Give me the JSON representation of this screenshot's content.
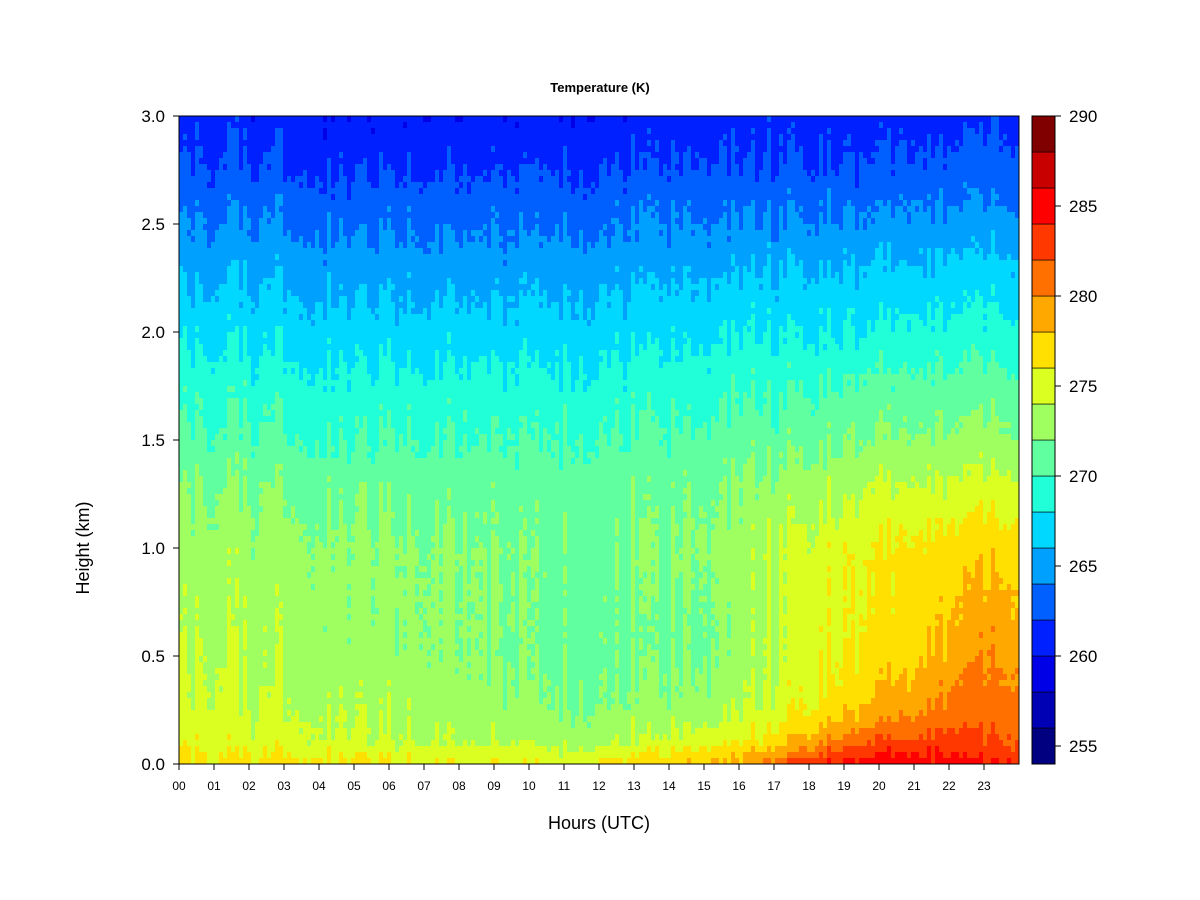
{
  "chart_data": {
    "type": "heatmap",
    "title": "Temperature (K)",
    "xlabel": "Hours (UTC)",
    "ylabel": "Height (km)",
    "x_ticks": [
      "00",
      "01",
      "02",
      "03",
      "04",
      "05",
      "06",
      "07",
      "08",
      "09",
      "10",
      "11",
      "12",
      "13",
      "14",
      "15",
      "16",
      "17",
      "18",
      "19",
      "20",
      "21",
      "22",
      "23"
    ],
    "y_ticks": [
      "0.0",
      "0.5",
      "1.0",
      "1.5",
      "2.0",
      "2.5",
      "3.0"
    ],
    "xlim": [
      0,
      24
    ],
    "ylim": [
      0,
      3.0
    ],
    "colorbar": {
      "label_ticks": [
        "255",
        "260",
        "265",
        "270",
        "275",
        "280",
        "285",
        "290"
      ],
      "range": [
        254,
        290
      ],
      "step": 2,
      "colors": [
        "#000080",
        "#0000b4",
        "#0000e6",
        "#0020ff",
        "#0060ff",
        "#00a0ff",
        "#00d8ff",
        "#20ffd8",
        "#60ffa0",
        "#a0ff60",
        "#dcff22",
        "#ffe000",
        "#ffa800",
        "#ff7000",
        "#ff3800",
        "#ff0000",
        "#c80000",
        "#800000"
      ]
    },
    "reference_hours": [
      0,
      1,
      2,
      3,
      5,
      7,
      9,
      11,
      13,
      15,
      16,
      17,
      18,
      19,
      20,
      21,
      22,
      23,
      24
    ],
    "reference_profiles": {
      "heights_km": [
        0.0,
        0.05,
        0.1,
        0.2,
        0.3,
        0.5,
        0.7,
        1.0,
        1.3,
        1.5,
        1.7,
        2.0,
        2.3,
        2.6,
        2.8,
        3.0
      ],
      "temperatures_K": [
        [
          276.5,
          276.0,
          275.5,
          275,
          274.5,
          274,
          273.5,
          273,
          272,
          270.5,
          269.5,
          267.5,
          265.5,
          263.5,
          262,
          261
        ],
        [
          276.5,
          276.0,
          275.5,
          275,
          274.5,
          274,
          273.5,
          273,
          272,
          270.5,
          269.5,
          267.5,
          265.5,
          263.5,
          262,
          261
        ],
        [
          277,
          276,
          275,
          274.5,
          274,
          273.5,
          273.3,
          273,
          272,
          270.5,
          269.5,
          267.5,
          265.5,
          263.5,
          262,
          261
        ],
        [
          277,
          276,
          275,
          274.5,
          274,
          273.5,
          273.2,
          272.8,
          271.8,
          270.3,
          269.3,
          267.3,
          265.3,
          263.3,
          261.8,
          260.8
        ],
        [
          276.5,
          275.5,
          274.5,
          274,
          273.5,
          273,
          272.8,
          272.5,
          271.5,
          270,
          269,
          267,
          265,
          263,
          261.5,
          260.5
        ],
        [
          276,
          275,
          274,
          273.5,
          273,
          272.5,
          272.5,
          272.3,
          271.3,
          270,
          269,
          267,
          265,
          263,
          261.5,
          260.5
        ],
        [
          276,
          275,
          274,
          273,
          272.5,
          272,
          272,
          272,
          271.2,
          270,
          269,
          267,
          265,
          263,
          261.5,
          260.5
        ],
        [
          275.5,
          274.5,
          273.5,
          272.5,
          272,
          271.5,
          271.5,
          271.5,
          271,
          270,
          269,
          267,
          265,
          263,
          261.5,
          260.5
        ],
        [
          277,
          275.5,
          274,
          273,
          272,
          271.5,
          271.5,
          271.8,
          271.2,
          270.2,
          269.2,
          267.2,
          265.2,
          263.2,
          261.7,
          260.7
        ],
        [
          278,
          276.5,
          275,
          273.5,
          272.5,
          271.8,
          271.8,
          272.3,
          271.6,
          270.5,
          269.5,
          267.5,
          265.5,
          263.5,
          262,
          261
        ],
        [
          279,
          277.5,
          276,
          274.5,
          273.5,
          273,
          273,
          273,
          272.2,
          271,
          270,
          268,
          265.8,
          263.5,
          262,
          261
        ],
        [
          281,
          279,
          277,
          275.5,
          274.5,
          274,
          274,
          274,
          272.5,
          271.2,
          270,
          268,
          265.8,
          263.5,
          262,
          261
        ],
        [
          283.5,
          281.5,
          279,
          277,
          276,
          275.5,
          275,
          274.8,
          273,
          271.5,
          270.2,
          268,
          266,
          263.5,
          262,
          261
        ],
        [
          284.5,
          283,
          281,
          278.5,
          277,
          276,
          275.5,
          275.5,
          273.3,
          271.8,
          270.5,
          268,
          266,
          263.5,
          262,
          261
        ],
        [
          285,
          284,
          282,
          279.5,
          278,
          276.8,
          276.2,
          276,
          273.8,
          272,
          270.8,
          268.2,
          266,
          263.5,
          262,
          261
        ],
        [
          285,
          284,
          282.5,
          280.5,
          279,
          277.5,
          277,
          276.5,
          274,
          272.2,
          271,
          268.5,
          266.2,
          263.8,
          262.2,
          261.2
        ],
        [
          285,
          284,
          283,
          281.5,
          280.5,
          279,
          278,
          277,
          274.5,
          272.5,
          271.2,
          268.8,
          266.5,
          264,
          262.5,
          261.5
        ],
        [
          284.5,
          283.5,
          282.5,
          281.5,
          281,
          280,
          279,
          277.5,
          274.8,
          272.8,
          271.5,
          269,
          266.8,
          264.2,
          262.8,
          261.8
        ],
        [
          284.5,
          283.5,
          282.5,
          281.5,
          281,
          280,
          279,
          277.5,
          274.8,
          272.8,
          271.5,
          269,
          266.8,
          264.2,
          262.8,
          261.8
        ]
      ]
    }
  }
}
